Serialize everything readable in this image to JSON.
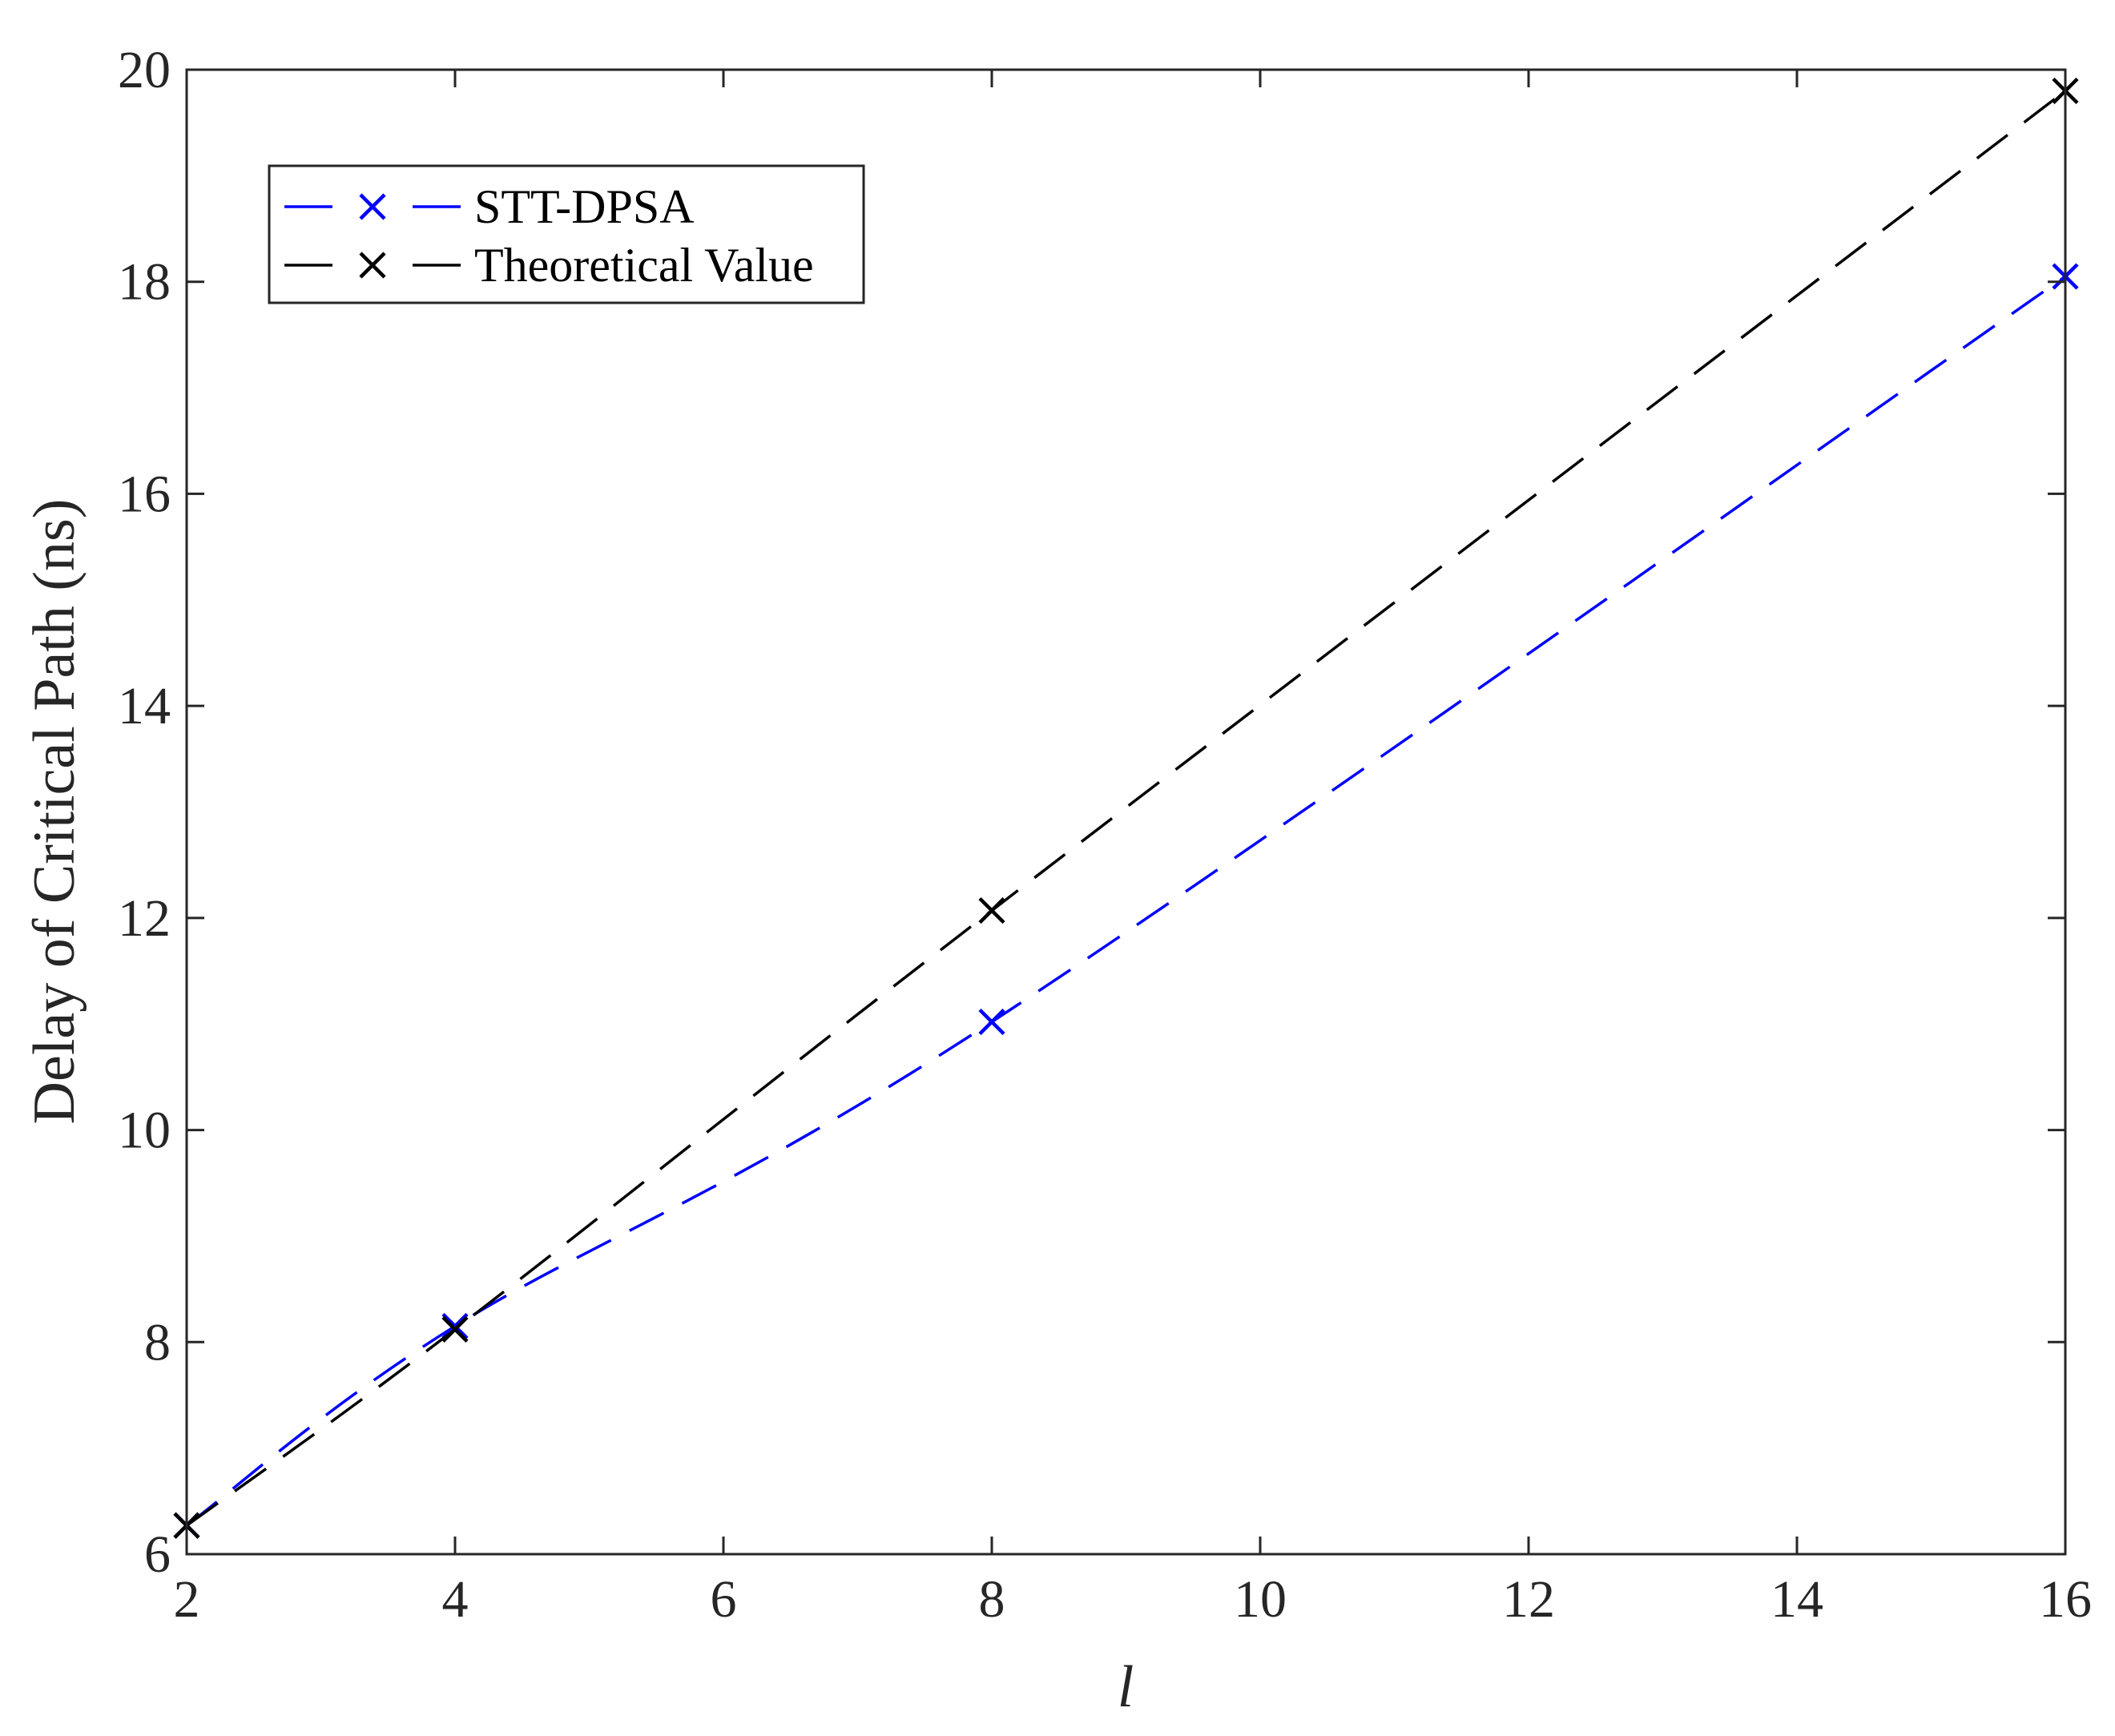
{
  "chart_data": {
    "type": "line",
    "xlabel": "l",
    "ylabel": "Delay of Critical Path (ns)",
    "xlim": [
      2,
      16
    ],
    "ylim": [
      6,
      20
    ],
    "xticks": [
      "2",
      "4",
      "6",
      "8",
      "10",
      "12",
      "14",
      "16"
    ],
    "yticks": [
      "6",
      "8",
      "10",
      "12",
      "14",
      "16",
      "18",
      "20"
    ],
    "grid": false,
    "legend_position": "top-left",
    "series": [
      {
        "name": "STT-DPSA",
        "color": "#0000ff",
        "line_style": "dashed",
        "marker": "x",
        "x": [
          2,
          4,
          8,
          16
        ],
        "y": [
          6.27,
          8.15,
          11.02,
          18.05
        ]
      },
      {
        "name": "Theoretical Value",
        "color": "#000000",
        "line_style": "dashed",
        "marker": "x",
        "x": [
          2,
          4,
          8,
          16
        ],
        "y": [
          6.27,
          8.12,
          12.07,
          19.8
        ]
      }
    ]
  }
}
